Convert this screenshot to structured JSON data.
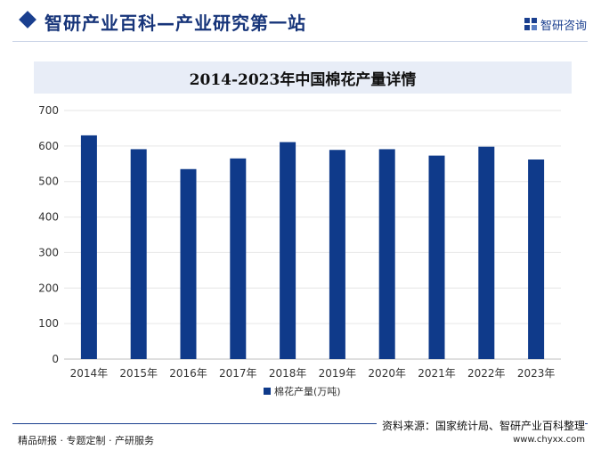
{
  "header": {
    "site_title": "智研产业百科—产业研究第一站",
    "brand_name": "智研咨询"
  },
  "colors": {
    "bar": "#0f3a8a",
    "accent": "#1a3f8f",
    "title_bar": "#e8edf7",
    "grid": "#e6e6e6"
  },
  "chart_data": {
    "type": "bar",
    "title": "2014-2023年中国棉花产量详情",
    "categories": [
      "2014年",
      "2015年",
      "2016年",
      "2017年",
      "2018年",
      "2019年",
      "2020年",
      "2021年",
      "2022年",
      "2023年"
    ],
    "series": [
      {
        "name": "棉花产量(万吨)",
        "values": [
          630,
          591,
          535,
          565,
          611,
          589,
          591,
          573,
          598,
          562
        ]
      }
    ],
    "y_ticks": [
      "0",
      "100",
      "200",
      "300",
      "400",
      "500",
      "600",
      "700"
    ],
    "ylim": [
      0,
      700
    ],
    "grid": true,
    "legend_position": "bottom"
  },
  "footer": {
    "source": "资料来源：国家统计局、智研产业百科整理",
    "services": "精品研报 · 专题定制 · 产研服务",
    "url": "www.chyxx.com"
  }
}
